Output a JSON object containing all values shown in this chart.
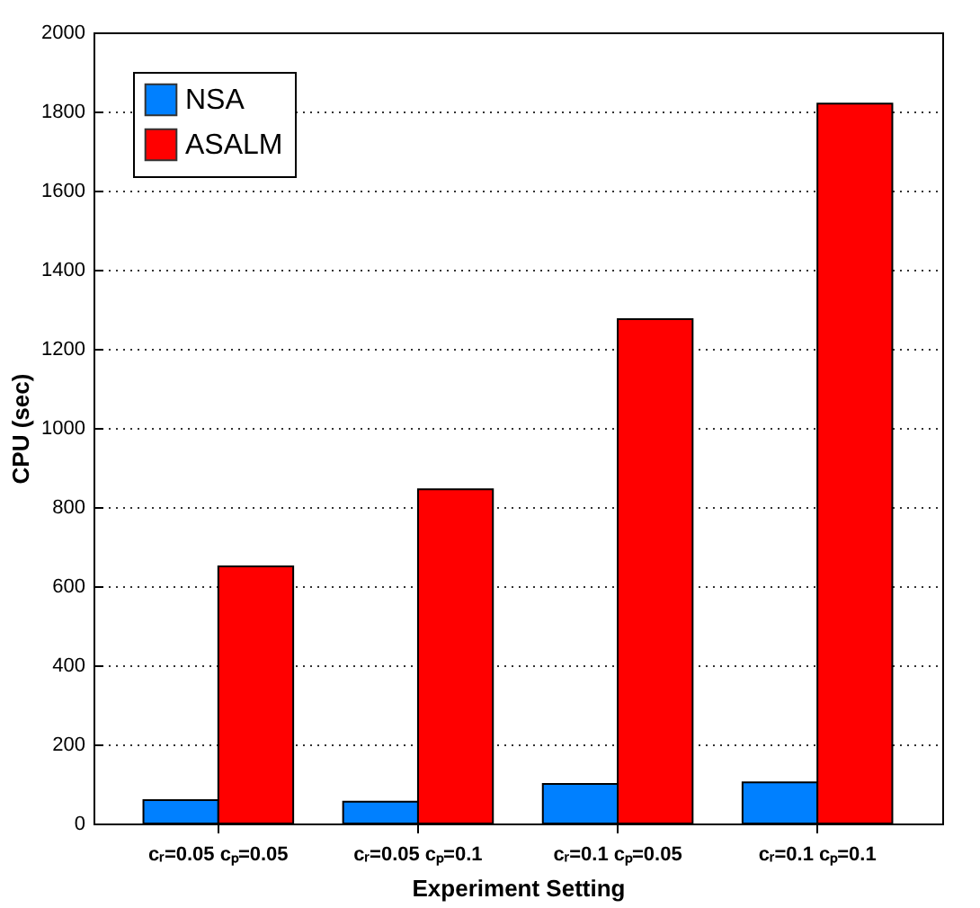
{
  "chart_data": {
    "type": "bar",
    "xlabel": "Experiment Setting",
    "ylabel": "CPU (sec)",
    "categories": [
      "cᵣ=0.05 cₚ=0.05",
      "cᵣ=0.05 cₚ=0.1",
      "cᵣ=0.1 cₚ=0.05",
      "cᵣ=0.1 cₚ=0.1"
    ],
    "series": [
      {
        "name": "NSA",
        "color": "#0080ff",
        "values": [
          59,
          55,
          100,
          104
        ]
      },
      {
        "name": "ASALM",
        "color": "#ff0000",
        "values": [
          650,
          845,
          1275,
          1820
        ]
      }
    ],
    "ylim": [
      0,
      2000
    ],
    "yticks": [
      0,
      200,
      400,
      600,
      800,
      1000,
      1200,
      1400,
      1600,
      1800,
      2000
    ],
    "grid": "y",
    "legend": "top left"
  }
}
